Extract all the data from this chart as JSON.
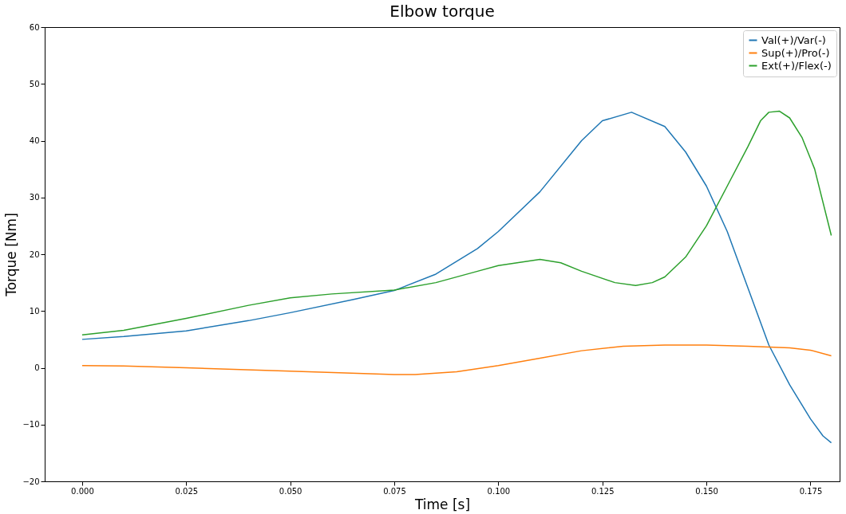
{
  "chart_data": {
    "type": "line",
    "title": "Elbow torque",
    "xlabel": "Time [s]",
    "ylabel": "Torque [Nm]",
    "xlim": [
      -0.009,
      0.182
    ],
    "ylim": [
      -20,
      60
    ],
    "xticks": [
      {
        "value": 0,
        "label": "0.000"
      },
      {
        "value": 0.025,
        "label": "0.025"
      },
      {
        "value": 0.05,
        "label": "0.050"
      },
      {
        "value": 0.075,
        "label": "0.075"
      },
      {
        "value": 0.1,
        "label": "0.100"
      },
      {
        "value": 0.125,
        "label": "0.125"
      },
      {
        "value": 0.15,
        "label": "0.150"
      },
      {
        "value": 0.175,
        "label": "0.175"
      }
    ],
    "yticks": [
      {
        "value": -20,
        "label": "−20"
      },
      {
        "value": -10,
        "label": "−10"
      },
      0,
      10,
      20,
      30,
      40,
      50,
      60
    ],
    "grid": false,
    "legend": "top right",
    "line_style": "solid",
    "marker": "none",
    "series": [
      {
        "name": "Val(+)/Var(-)",
        "color": "#1f77b4",
        "x": [
          0,
          0.01,
          0.025,
          0.04,
          0.05,
          0.065,
          0.075,
          0.085,
          0.095,
          0.1,
          0.11,
          0.12,
          0.125,
          0.132,
          0.14,
          0.145,
          0.15,
          0.155,
          0.16,
          0.165,
          0.17,
          0.175,
          0.178,
          0.18
        ],
        "values": [
          5.0,
          5.5,
          6.5,
          8.3,
          9.7,
          12.0,
          13.6,
          16.5,
          21.0,
          24.0,
          31.0,
          40.0,
          43.5,
          45.0,
          42.5,
          38.0,
          32.0,
          24.0,
          14.0,
          4.0,
          -3.0,
          -9.0,
          -12.0,
          -13.2
        ]
      },
      {
        "name": "Sup(+)/Pro(-)",
        "color": "#ff7f0e",
        "x": [
          0,
          0.01,
          0.025,
          0.05,
          0.075,
          0.08,
          0.09,
          0.1,
          0.11,
          0.12,
          0.13,
          0.14,
          0.15,
          0.16,
          0.17,
          0.175,
          0.18
        ],
        "values": [
          0.4,
          0.3,
          0.0,
          -0.6,
          -1.2,
          -1.2,
          -0.7,
          0.4,
          1.7,
          3.0,
          3.8,
          4.0,
          4.0,
          3.8,
          3.5,
          3.1,
          2.1
        ]
      },
      {
        "name": "Ext(+)/Flex(-)",
        "color": "#2ca02c",
        "x": [
          0,
          0.01,
          0.025,
          0.04,
          0.05,
          0.06,
          0.075,
          0.085,
          0.095,
          0.1,
          0.11,
          0.115,
          0.12,
          0.128,
          0.133,
          0.137,
          0.14,
          0.145,
          0.15,
          0.155,
          0.16,
          0.163,
          0.165,
          0.1675,
          0.17,
          0.173,
          0.176,
          0.18
        ],
        "values": [
          5.8,
          6.6,
          8.7,
          11.0,
          12.3,
          13.0,
          13.7,
          15.0,
          17.0,
          18.0,
          19.1,
          18.5,
          17.0,
          15.0,
          14.5,
          15.0,
          16.0,
          19.5,
          25.0,
          32.0,
          39.0,
          43.5,
          45.0,
          45.2,
          44.0,
          40.5,
          35.0,
          23.3
        ]
      }
    ]
  }
}
